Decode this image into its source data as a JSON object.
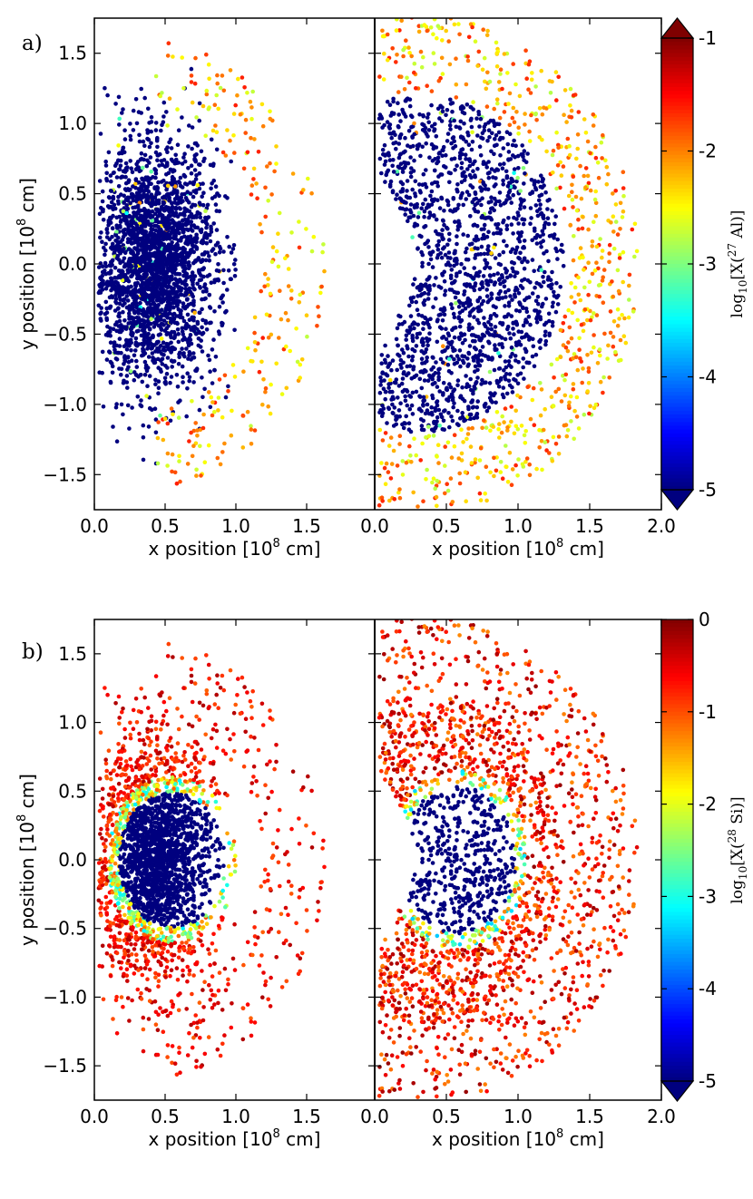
{
  "panels": [
    {
      "id": "a",
      "label": "a)",
      "colorbar": {
        "label": "log10[X(27 Al)]",
        "label_parts": {
          "prefix": "log",
          "sub": "10",
          "mid": "[X(",
          "sup": "27",
          "suffix": " Al)]"
        },
        "min": -5,
        "max": -1,
        "ticks": [
          -1,
          -2,
          -3,
          -4,
          -5
        ],
        "tick_labels": [
          "-1",
          "-2",
          "-3",
          "-4",
          "-5"
        ],
        "extend": "both"
      }
    },
    {
      "id": "b",
      "label": "b)",
      "colorbar": {
        "label": "log10[X(28 Si)]",
        "label_parts": {
          "prefix": "log",
          "sub": "10",
          "mid": "[X(",
          "sup": "28",
          "suffix": " Si)]"
        },
        "min": -5,
        "max": 0,
        "ticks": [
          0,
          -1,
          -2,
          -3,
          -4,
          -5
        ],
        "tick_labels": [
          "0",
          "-1",
          "-2",
          "-3",
          "-4",
          "-5"
        ],
        "extend": "min"
      }
    }
  ],
  "axes": {
    "ylabel": {
      "text": "y position [10",
      "sup": "8",
      "unit": "  cm]"
    },
    "xlabel": {
      "text": "x position [10",
      "sup": "8",
      "unit": "  cm]"
    },
    "y_ticks": [
      1.5,
      1.0,
      0.5,
      0.0,
      -0.5,
      -1.0,
      -1.5
    ],
    "y_tick_labels": [
      "1.5",
      "1.0",
      "0.5",
      "0.0",
      "−0.5",
      "−1.0",
      "−1.5"
    ],
    "left_x_ticks": [
      0.0,
      0.5,
      1.0,
      1.5
    ],
    "left_x_tick_labels": [
      "0.0",
      "0.5",
      "1.0",
      "1.5"
    ],
    "right_x_ticks": [
      0.0,
      0.5,
      1.0,
      1.5,
      2.0
    ],
    "right_x_tick_labels": [
      "0.0",
      "0.5",
      "1.0",
      "1.5",
      "2.0"
    ]
  },
  "chart_data": {
    "type": "scatter",
    "title": "",
    "subplots": [
      {
        "panel": "a",
        "side": "left",
        "xlim": [
          0.0,
          2.0
        ],
        "ylim": [
          -1.75,
          1.75
        ],
        "color_quantity": "log10[X(27 Al)]",
        "clim": [
          -5,
          -1
        ]
      },
      {
        "panel": "a",
        "side": "right",
        "xlim": [
          0.0,
          2.0
        ],
        "ylim": [
          -1.75,
          1.75
        ],
        "color_quantity": "log10[X(27 Al)]",
        "clim": [
          -5,
          -1
        ]
      },
      {
        "panel": "b",
        "side": "left",
        "xlim": [
          0.0,
          2.0
        ],
        "ylim": [
          -1.75,
          1.75
        ],
        "color_quantity": "log10[X(28 Si)]",
        "clim": [
          -5,
          0
        ]
      },
      {
        "panel": "b",
        "side": "right",
        "xlim": [
          0.0,
          2.0
        ],
        "ylim": [
          -1.75,
          1.75
        ],
        "color_quantity": "log10[X(28 Si)]",
        "clim": [
          -5,
          0
        ]
      }
    ],
    "colormap": "jet",
    "colormap_stops": [
      "#00007f",
      "#0000ff",
      "#007fff",
      "#00ffff",
      "#7fff7f",
      "#ffff00",
      "#ff7f00",
      "#ff0000",
      "#7f0000"
    ],
    "grid": false,
    "legend": "none"
  }
}
